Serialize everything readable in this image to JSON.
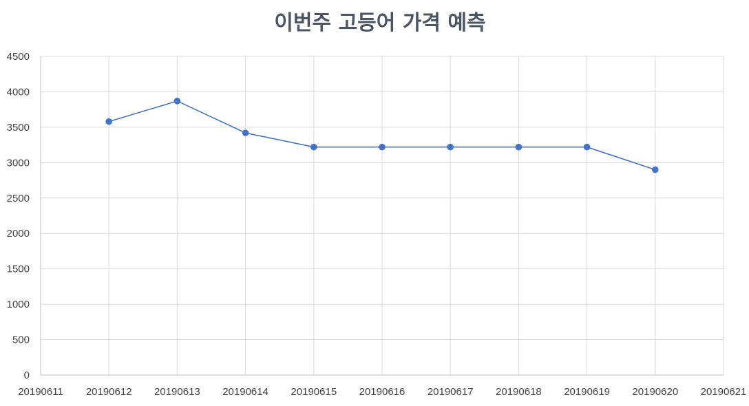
{
  "chart_data": {
    "type": "line",
    "title": "이번주 고등어 가격 예측",
    "xlabel": "",
    "ylabel": "",
    "categories": [
      "20190611",
      "20190612",
      "20190613",
      "20190614",
      "20190615",
      "20190616",
      "20190617",
      "20190618",
      "20190619",
      "20190620",
      "20190621"
    ],
    "yticks": [
      "0",
      "500",
      "1000",
      "1500",
      "2000",
      "2500",
      "3000",
      "3500",
      "4000",
      "4500"
    ],
    "ylim": [
      0,
      4500
    ],
    "grid": true,
    "legend": "none",
    "series": [
      {
        "color": "#4472c4",
        "points": [
          {
            "x": "20190612",
            "y": 3580
          },
          {
            "x": "20190613",
            "y": 3870
          },
          {
            "x": "20190614",
            "y": 3420
          },
          {
            "x": "20190615",
            "y": 3220
          },
          {
            "x": "20190616",
            "y": 3220
          },
          {
            "x": "20190617",
            "y": 3220
          },
          {
            "x": "20190618",
            "y": 3220
          },
          {
            "x": "20190619",
            "y": 3220
          },
          {
            "x": "20190620",
            "y": 2900
          }
        ]
      }
    ]
  }
}
